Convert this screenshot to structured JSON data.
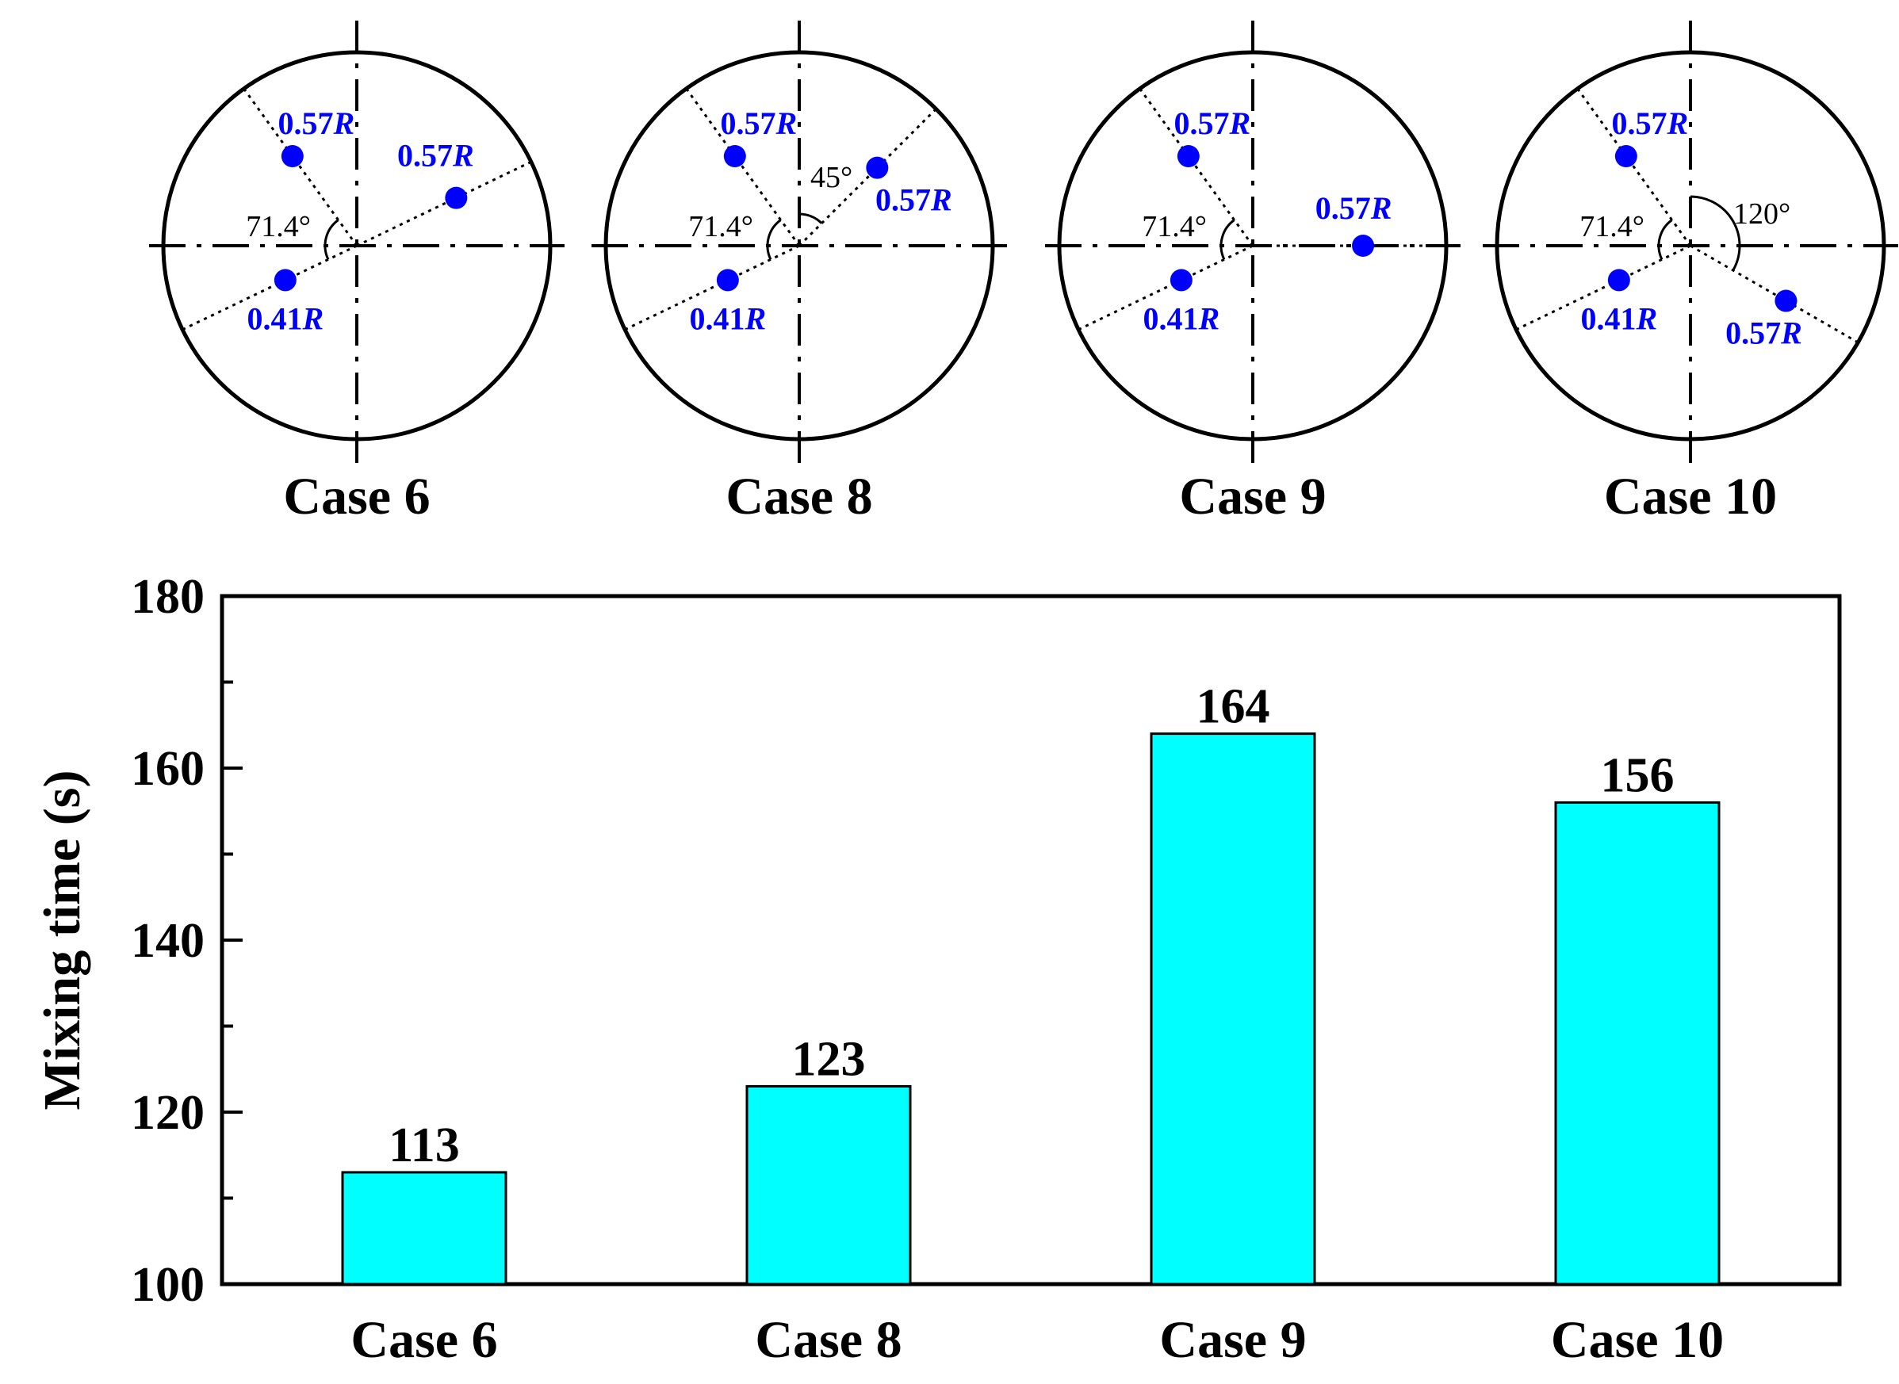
{
  "colors": {
    "bar_fill": "#00ffff",
    "point": "#0000ff",
    "line": "#000000"
  },
  "schematics": [
    {
      "title": "Case 6",
      "points": [
        {
          "label": "0.57",
          "unit": "R",
          "angle_deg": 125.7,
          "radius": 0.57
        },
        {
          "label": "0.41",
          "unit": "R",
          "angle_deg": 205.7,
          "radius": 0.41
        },
        {
          "label": "0.57",
          "unit": "R",
          "angle_deg": 25.7,
          "radius": 0.57
        }
      ],
      "angle_labels": [
        "71.4°"
      ]
    },
    {
      "title": "Case 8",
      "points": [
        {
          "label": "0.57",
          "unit": "R",
          "angle_deg": 125.7,
          "radius": 0.57
        },
        {
          "label": "0.41",
          "unit": "R",
          "angle_deg": 205.7,
          "radius": 0.41
        },
        {
          "label": "0.57",
          "unit": "R",
          "angle_deg": 45,
          "radius": 0.57
        }
      ],
      "angle_labels": [
        "71.4°",
        "45°"
      ]
    },
    {
      "title": "Case 9",
      "points": [
        {
          "label": "0.57",
          "unit": "R",
          "angle_deg": 125.7,
          "radius": 0.57
        },
        {
          "label": "0.41",
          "unit": "R",
          "angle_deg": 205.7,
          "radius": 0.41
        },
        {
          "label": "0.57",
          "unit": "R",
          "angle_deg": 0,
          "radius": 0.57
        }
      ],
      "angle_labels": [
        "71.4°"
      ]
    },
    {
      "title": "Case 10",
      "points": [
        {
          "label": "0.57",
          "unit": "R",
          "angle_deg": 125.7,
          "radius": 0.57
        },
        {
          "label": "0.41",
          "unit": "R",
          "angle_deg": 205.7,
          "radius": 0.41
        },
        {
          "label": "0.57",
          "unit": "R",
          "angle_deg": -30,
          "radius": 0.57
        }
      ],
      "angle_labels": [
        "71.4°",
        "120°"
      ]
    }
  ],
  "chart_data": {
    "type": "bar",
    "title": "",
    "categories": [
      "Case 6",
      "Case 8",
      "Case 9",
      "Case 10"
    ],
    "values": [
      113,
      123,
      164,
      156
    ],
    "value_labels": [
      "113",
      "123",
      "164",
      "156"
    ],
    "xlabel": "",
    "ylabel": "Mixing time (s)",
    "ylim": [
      100,
      180
    ],
    "yticks": [
      100,
      120,
      140,
      160,
      180
    ],
    "grid": false
  }
}
